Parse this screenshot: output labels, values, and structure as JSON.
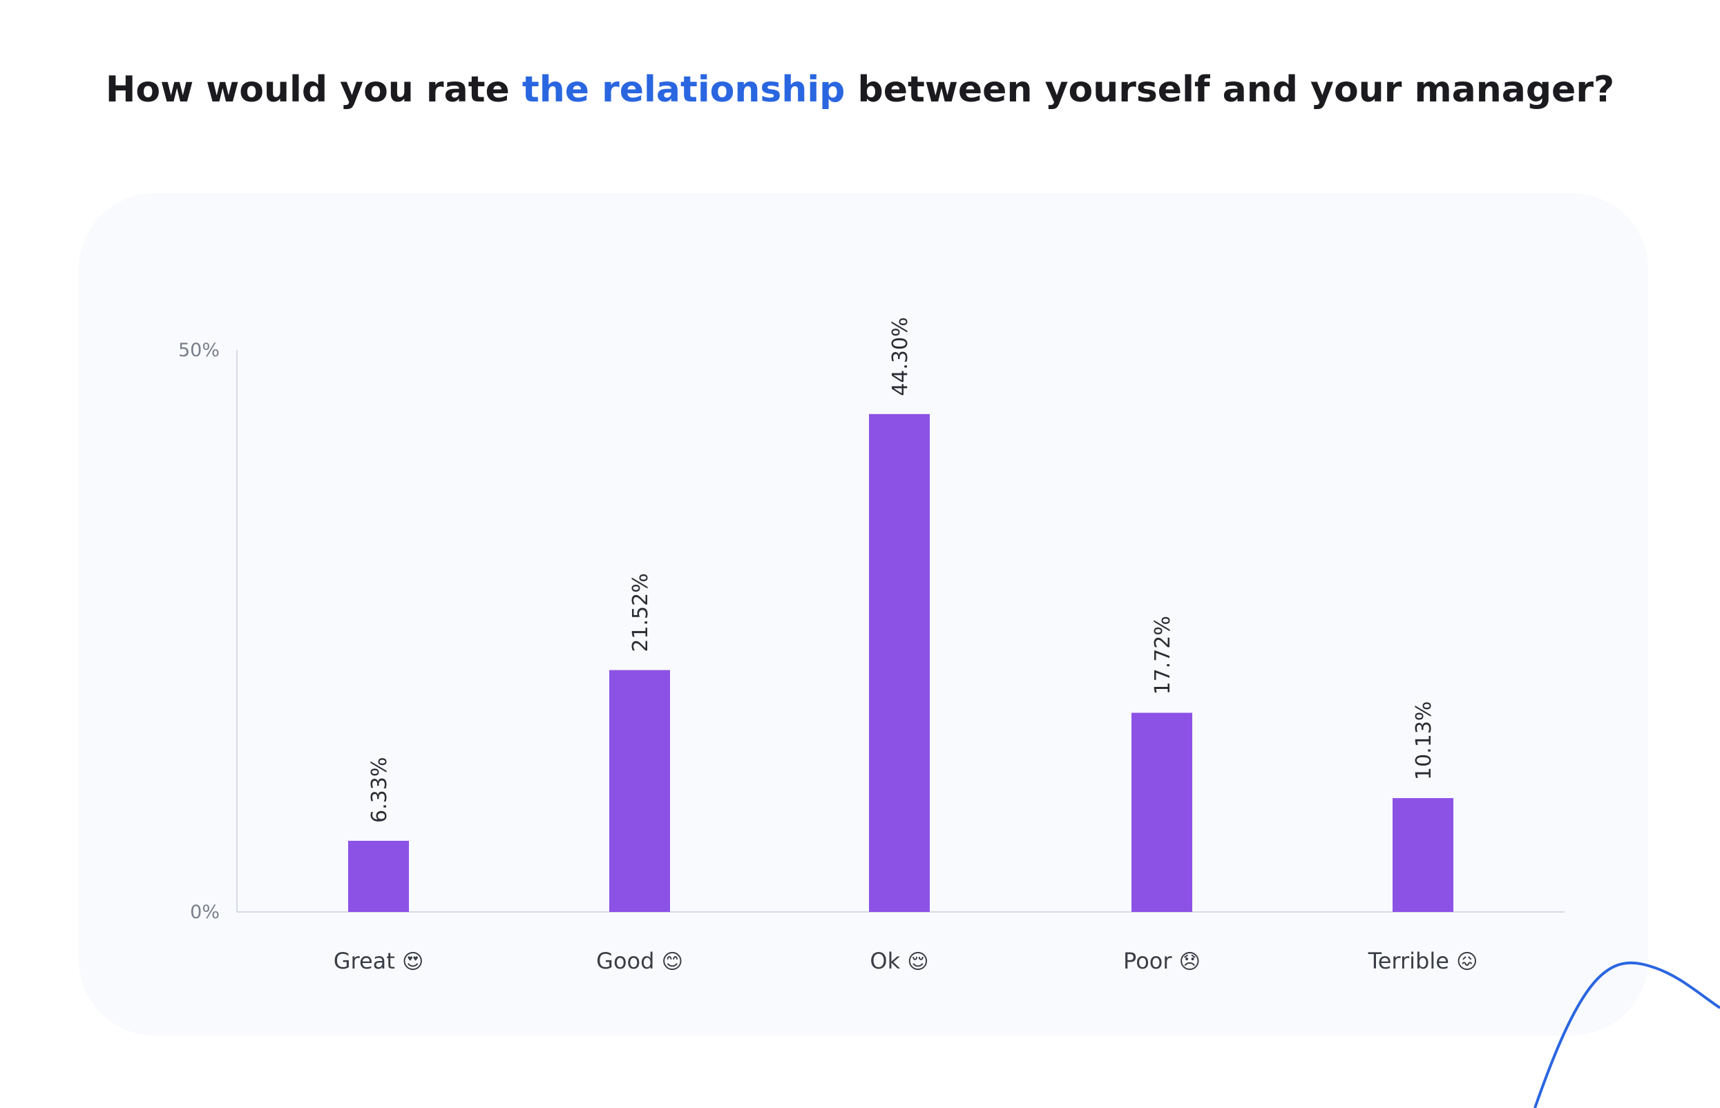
{
  "header": {
    "title_part1": "How would you rate ",
    "title_highlight": "the relationship",
    "title_part2": " between yourself and your manager?"
  },
  "colors": {
    "bar": "#8c52e6",
    "accent": "#2a66e0",
    "axis": "#d6dae6"
  },
  "chart_data": {
    "type": "bar",
    "title": "How would you rate the relationship between yourself and your manager?",
    "categories": [
      "Great",
      "Good",
      "Ok",
      "Poor",
      "Terrible"
    ],
    "category_emoji": [
      "😍",
      "😊",
      "😌",
      "😞",
      "😖"
    ],
    "values": [
      6.33,
      21.52,
      44.3,
      17.72,
      10.13
    ],
    "value_labels": [
      "6.33%",
      "21.52%",
      "44.30%",
      "17.72%",
      "10.13%"
    ],
    "ylim": [
      0,
      50
    ],
    "yticks": [
      "0%",
      "50%"
    ],
    "xlabel": "",
    "ylabel": "",
    "grid": false,
    "legend": "none"
  }
}
